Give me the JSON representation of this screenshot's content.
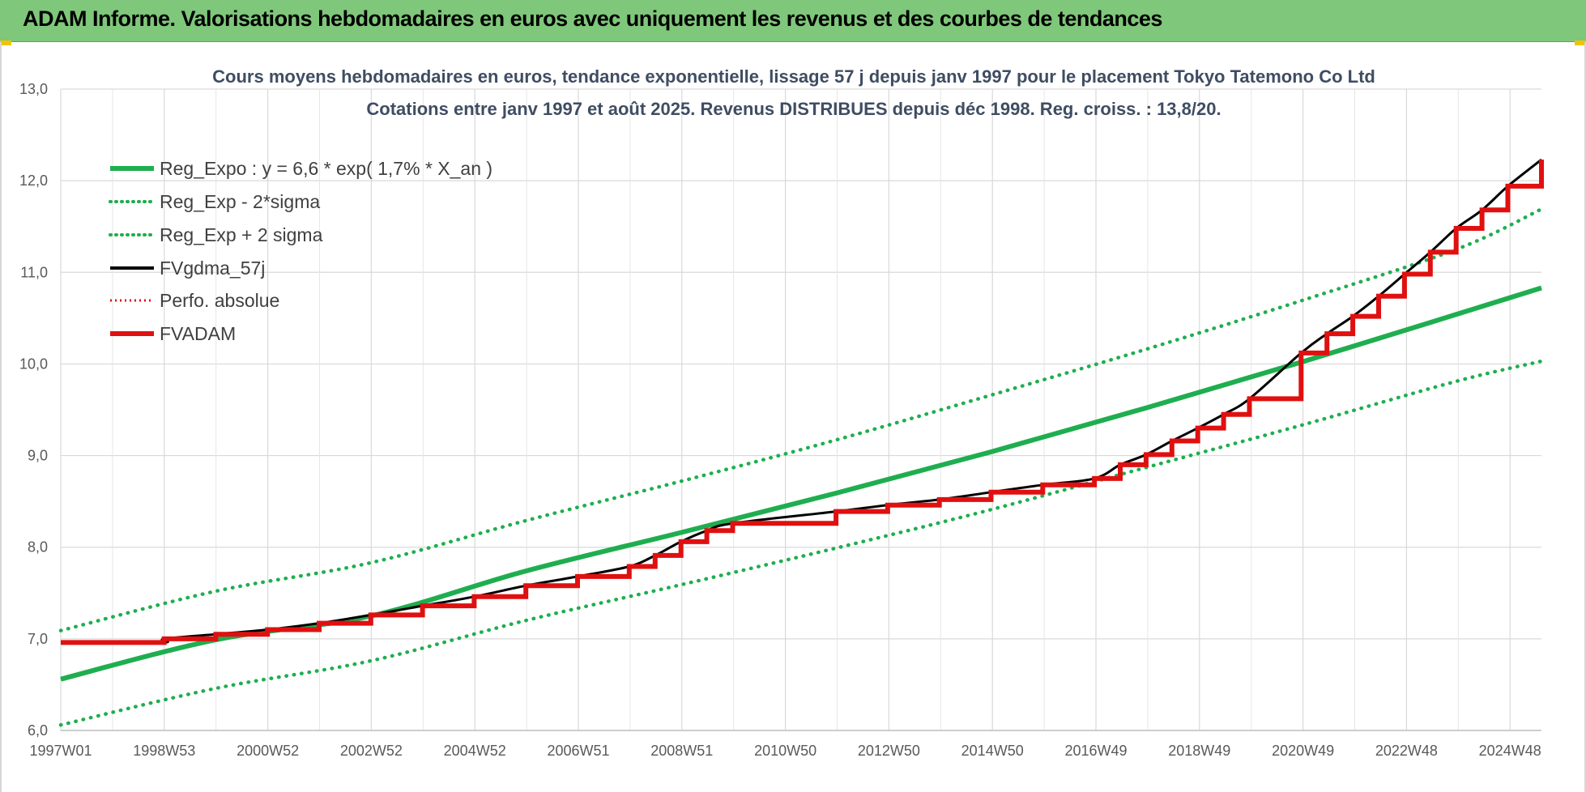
{
  "header": {
    "title": "ADAM Informe. Valorisations hebdomadaires en euros avec uniquement les revenus et des courbes de tendances"
  },
  "colors": {
    "banner": "#7fc77a",
    "reg_expo": "#1fae4f",
    "fvgdma": "#000000",
    "perfo": "#e01010",
    "fvadam": "#e01010"
  },
  "chart_data": {
    "type": "line",
    "title_line1": "Cours moyens hebdomadaires en euros, tendance exponentielle, lissage 57 j depuis janv 1997 pour le placement Tokyo Tatemono Co Ltd",
    "title_line2": "Cotations entre janv 1997 et août 2025. Revenus DISTRIBUES depuis déc 1998. Reg. croiss. : 13,8/20.",
    "ylim": [
      6.0,
      13.0
    ],
    "y_ticks": [
      "6,0",
      "7,0",
      "8,0",
      "9,0",
      "10,0",
      "11,0",
      "12,0",
      "13,0"
    ],
    "x_ticks": [
      "1997W01",
      "1998W53",
      "2000W52",
      "2002W52",
      "2004W52",
      "2006W51",
      "2008W51",
      "2010W50",
      "2012W50",
      "2014W50",
      "2016W49",
      "2018W49",
      "2020W49",
      "2022W48",
      "2024W48"
    ],
    "x_range_years": [
      1997.0,
      2025.65
    ],
    "grid": true,
    "legend_position": "top-left",
    "legend": [
      "Reg_Expo : y = 6,6 * exp( 1,7% *  X_an )",
      "Reg_Exp - 2*sigma",
      "Reg_Exp + 2 sigma",
      "FVgdma_57j",
      "Perfo. absolue",
      "FVADAM"
    ],
    "series": [
      {
        "name": "Reg_Expo : y = 6,6 * exp( 1,7% *  X_an )",
        "style": "solid-green",
        "x": [
          1997.0,
          2000.0,
          2003.0,
          2006.0,
          2009.0,
          2012.0,
          2015.0,
          2018.0,
          2021.0,
          2024.0,
          2025.65
        ],
        "values": [
          6.56,
          6.99,
          7.25,
          7.74,
          8.16,
          8.59,
          9.04,
          9.52,
          10.02,
          10.54,
          10.83
        ]
      },
      {
        "name": "Reg_Exp - 2*sigma",
        "style": "dotted-green",
        "x": [
          1997.0,
          2000.0,
          2003.0,
          2006.0,
          2009.0,
          2012.0,
          2015.0,
          2018.0,
          2021.0,
          2024.0,
          2025.65
        ],
        "values": [
          6.06,
          6.46,
          6.76,
          7.2,
          7.59,
          7.99,
          8.41,
          8.87,
          9.33,
          9.81,
          10.03
        ]
      },
      {
        "name": "Reg_Exp + 2 sigma",
        "style": "dotted-green",
        "x": [
          1997.0,
          2000.0,
          2003.0,
          2006.0,
          2009.0,
          2012.0,
          2015.0,
          2018.0,
          2021.0,
          2024.0,
          2025.65
        ],
        "values": [
          7.09,
          7.52,
          7.83,
          8.29,
          8.72,
          9.17,
          9.66,
          10.16,
          10.69,
          11.25,
          11.69
        ]
      },
      {
        "name": "FVADAM",
        "style": "solid-red",
        "x": [
          1997.0,
          1998.95,
          1999.0,
          2000.0,
          2001.0,
          2002.0,
          2003.0,
          2004.0,
          2005.0,
          2006.0,
          2007.0,
          2008.0,
          2008.5,
          2009.0,
          2009.5,
          2010.0,
          2012.0,
          2013.0,
          2014.0,
          2015.0,
          2016.0,
          2017.0,
          2017.5,
          2018.0,
          2018.5,
          2019.0,
          2019.5,
          2020.0,
          2021.0,
          2021.5,
          2022.0,
          2022.5,
          2023.0,
          2023.5,
          2024.0,
          2024.5,
          2025.0,
          2025.65
        ],
        "values": [
          6.96,
          6.96,
          7.0,
          7.05,
          7.1,
          7.17,
          7.26,
          7.36,
          7.46,
          7.58,
          7.68,
          7.79,
          7.91,
          8.06,
          8.18,
          8.26,
          8.39,
          8.46,
          8.52,
          8.6,
          8.68,
          8.75,
          8.9,
          9.01,
          9.16,
          9.3,
          9.45,
          9.62,
          10.12,
          10.33,
          10.52,
          10.74,
          10.98,
          11.22,
          11.48,
          11.68,
          11.94,
          12.23
        ]
      }
    ]
  }
}
